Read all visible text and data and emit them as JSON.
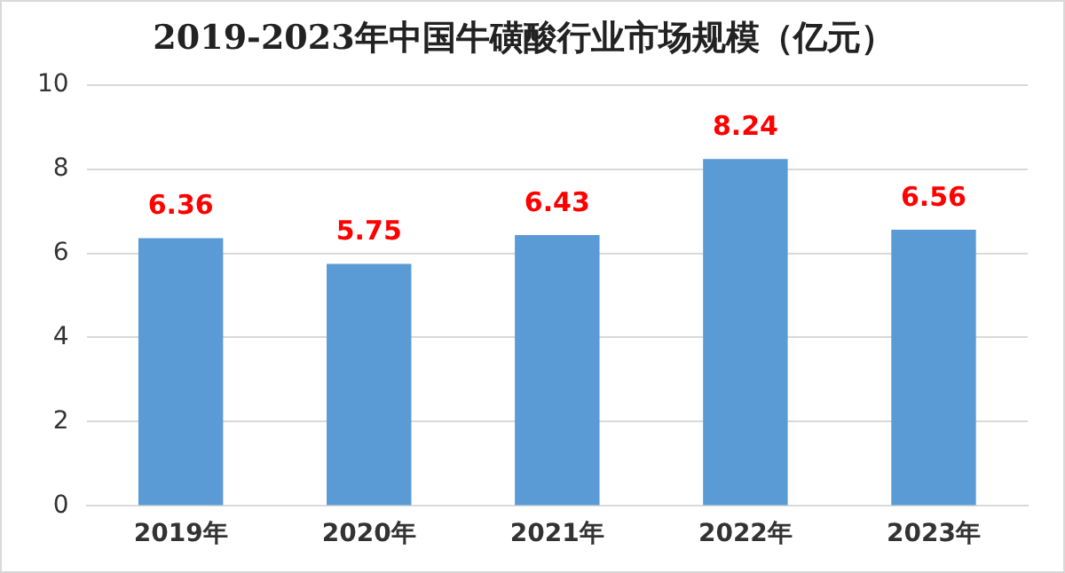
{
  "chart_data": {
    "type": "bar",
    "title": "2019-2023年中国牛磺酸行业市场规模（亿元）",
    "categories": [
      "2019年",
      "2020年",
      "2021年",
      "2022年",
      "2023年"
    ],
    "values": [
      6.36,
      5.75,
      6.43,
      8.24,
      6.56
    ],
    "color": "#5b9bd5",
    "ylim": [
      0,
      10
    ],
    "yticks": [
      0,
      2,
      4,
      6,
      8,
      10
    ],
    "grid": "y",
    "data_labels": true,
    "legend": false
  }
}
